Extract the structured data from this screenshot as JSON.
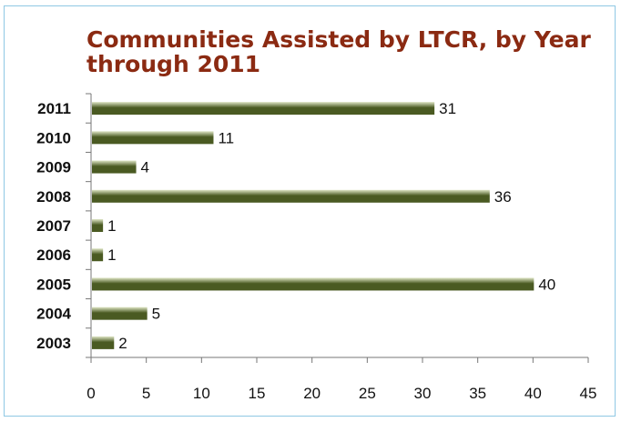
{
  "chart_data": {
    "type": "bar",
    "orientation": "horizontal",
    "title": "Communities Assisted by LTCR, by Year through 2011",
    "categories": [
      "2003",
      "2004",
      "2005",
      "2006",
      "2007",
      "2008",
      "2009",
      "2010",
      "2011"
    ],
    "values": [
      2,
      5,
      40,
      1,
      1,
      36,
      4,
      11,
      31
    ],
    "data_labels": [
      "2",
      "5",
      "40",
      "1",
      "1",
      "36",
      "4",
      "11",
      "31"
    ],
    "xlabel": "",
    "ylabel": "",
    "xlim": [
      0,
      45
    ],
    "x_ticks": [
      "0",
      "5",
      "10",
      "15",
      "20",
      "25",
      "30",
      "35",
      "40",
      "45"
    ],
    "grid": false,
    "legend": "none",
    "bar_color_dark": "#4a5a22",
    "bar_color_light": "#dfe6c6",
    "title_color": "#8b2a12",
    "frame_color": "#8fc8e4"
  }
}
